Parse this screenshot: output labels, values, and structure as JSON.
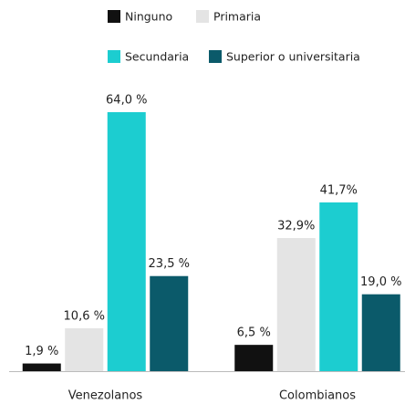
{
  "chart_data": {
    "type": "bar",
    "categories": [
      "Venezolanos",
      "Colombianos"
    ],
    "series": [
      {
        "name": "Ninguno",
        "color": "#111111",
        "values": [
          1.9,
          6.5
        ],
        "value_labels": [
          "1,9 %",
          "6,5 %"
        ]
      },
      {
        "name": "Primaria",
        "color": "#e4e4e4",
        "values": [
          10.6,
          32.9
        ],
        "value_labels": [
          "10,6 %",
          "32,9%"
        ]
      },
      {
        "name": "Secundaria",
        "color": "#1ccdd0",
        "values": [
          64.0,
          41.7
        ],
        "value_labels": [
          "64,0 %",
          "41,7%"
        ]
      },
      {
        "name": "Superior o universitaria",
        "color": "#0b5a6a",
        "values": [
          23.5,
          19.0
        ],
        "value_labels": [
          "23,5 %",
          "19,0 %"
        ]
      }
    ]
  }
}
